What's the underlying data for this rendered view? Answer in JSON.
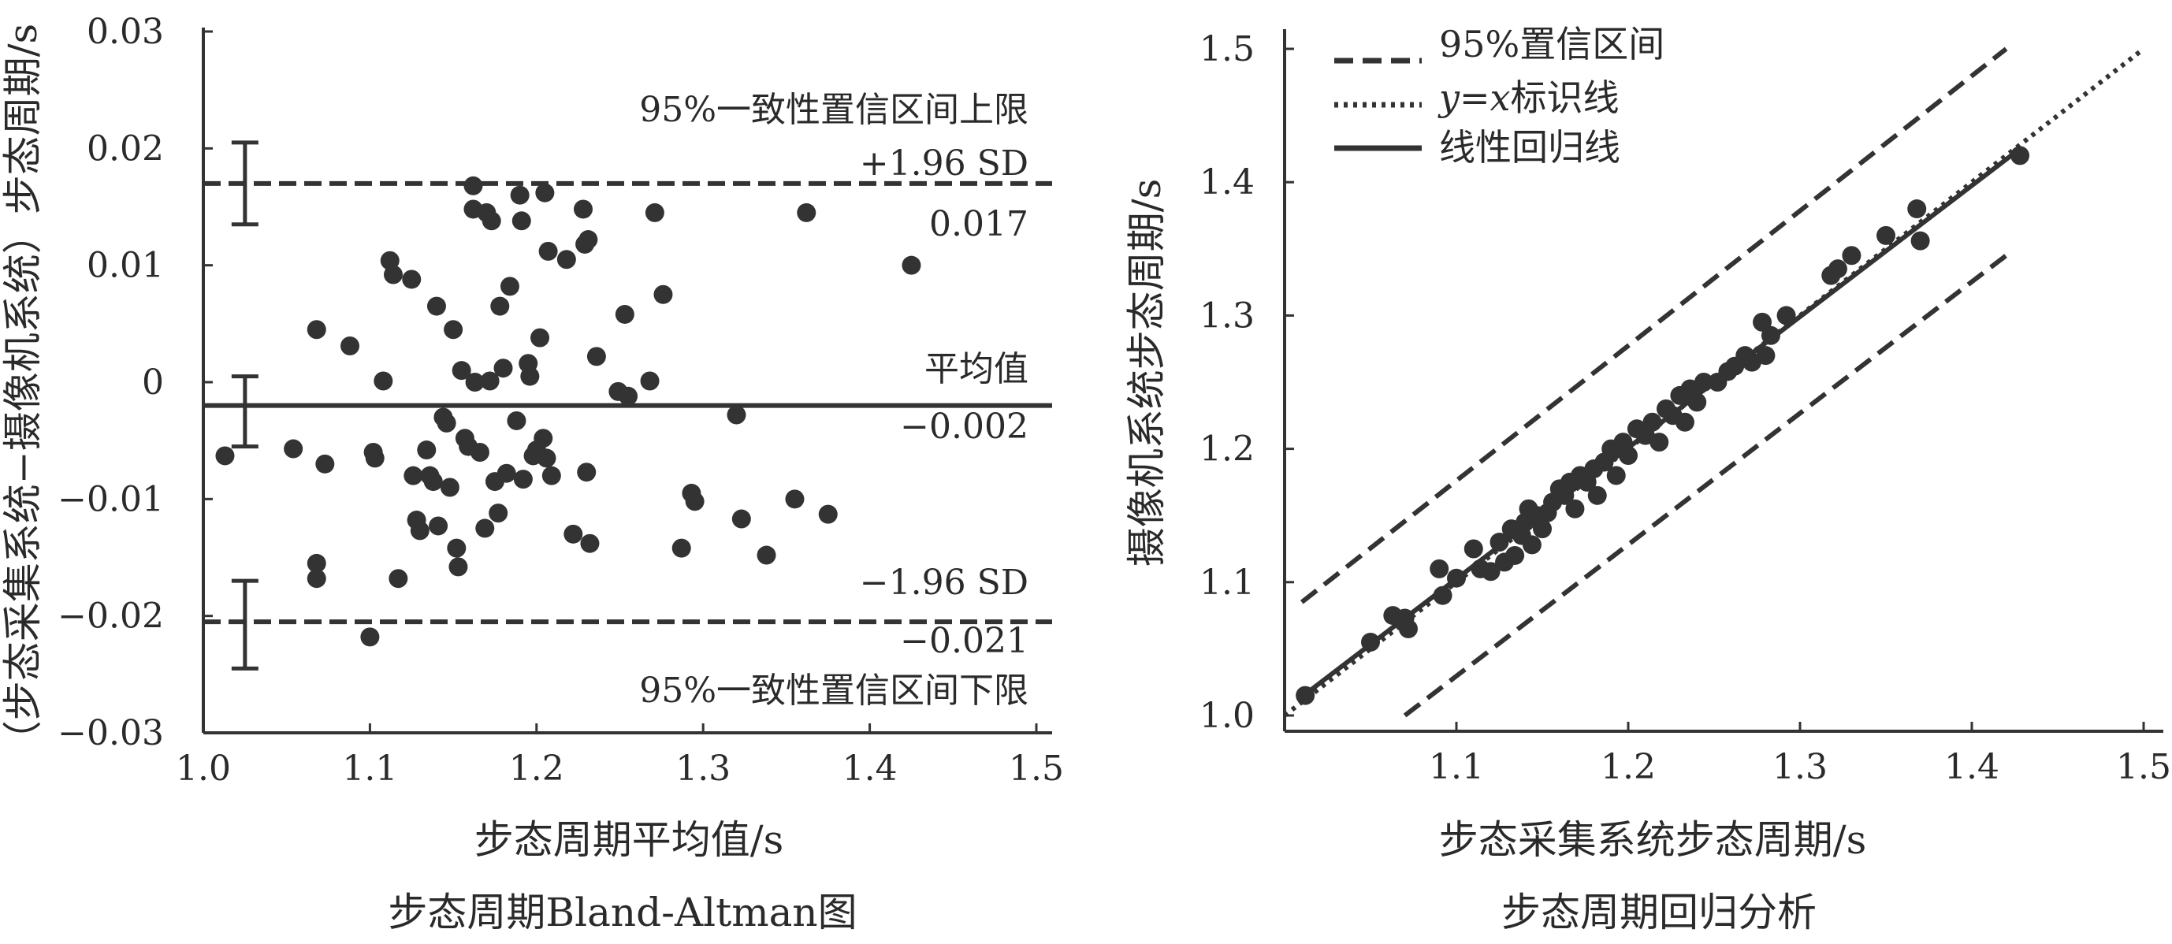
{
  "chart_data": [
    {
      "type": "scatter",
      "caption": "步态周期Bland-Altman图",
      "xlabel": "步态周期平均值/s",
      "ylabel": "（步态采集系统−摄像机系统）步态周期/s",
      "xlim": [
        1.0,
        1.5
      ],
      "ylim": [
        -0.03,
        0.03
      ],
      "x_ticks": [
        "1.0",
        "1.1",
        "1.2",
        "1.3",
        "1.4",
        "1.5"
      ],
      "y_ticks": [
        "0.03",
        "0.02",
        "0.01",
        "0",
        "−0.01",
        "−0.02",
        "−0.03"
      ],
      "lines": [
        {
          "label_top": "95%一致性置信区间上限",
          "label_mid": "+1.96 SD",
          "value_text": "0.017",
          "y": 0.017,
          "style": "dashed"
        },
        {
          "label_top": "平均值",
          "value_text": "−0.002",
          "y": -0.002,
          "style": "solid"
        },
        {
          "label_mid": "−1.96 SD",
          "value_text": "−0.021",
          "label_bottom": "95%一致性置信区间下限",
          "y": -0.0205,
          "style": "dashed"
        }
      ],
      "error_bars": [
        {
          "x": 1.025,
          "y_low": 0.0135,
          "y_high": 0.0205
        },
        {
          "x": 1.025,
          "y_low": -0.0055,
          "y_high": 0.0005
        },
        {
          "x": 1.025,
          "y_low": -0.0245,
          "y_high": -0.017
        }
      ],
      "points": [
        [
          1.013,
          -0.0063
        ],
        [
          1.054,
          -0.0057
        ],
        [
          1.068,
          0.0045
        ],
        [
          1.068,
          -0.0155
        ],
        [
          1.068,
          -0.0168
        ],
        [
          1.073,
          -0.007
        ],
        [
          1.088,
          0.0031
        ],
        [
          1.1,
          -0.0218
        ],
        [
          1.102,
          -0.006
        ],
        [
          1.103,
          -0.0065
        ],
        [
          1.108,
          0.0001
        ],
        [
          1.112,
          0.0104
        ],
        [
          1.114,
          0.0092
        ],
        [
          1.117,
          -0.0168
        ],
        [
          1.125,
          0.0088
        ],
        [
          1.126,
          -0.008
        ],
        [
          1.128,
          -0.0118
        ],
        [
          1.13,
          -0.0127
        ],
        [
          1.134,
          -0.0058
        ],
        [
          1.136,
          -0.008
        ],
        [
          1.138,
          -0.0085
        ],
        [
          1.14,
          0.0065
        ],
        [
          1.141,
          -0.0123
        ],
        [
          1.144,
          -0.003
        ],
        [
          1.146,
          -0.0035
        ],
        [
          1.148,
          -0.009
        ],
        [
          1.15,
          0.0045
        ],
        [
          1.152,
          -0.0142
        ],
        [
          1.153,
          -0.0158
        ],
        [
          1.155,
          0.001
        ],
        [
          1.157,
          -0.0048
        ],
        [
          1.159,
          -0.0055
        ],
        [
          1.162,
          0.0168
        ],
        [
          1.162,
          0.0148
        ],
        [
          1.163,
          0.0
        ],
        [
          1.166,
          -0.006
        ],
        [
          1.169,
          -0.0125
        ],
        [
          1.17,
          0.0145
        ],
        [
          1.172,
          0.0001
        ],
        [
          1.173,
          0.0138
        ],
        [
          1.175,
          -0.0085
        ],
        [
          1.177,
          -0.0112
        ],
        [
          1.178,
          0.0065
        ],
        [
          1.18,
          0.0012
        ],
        [
          1.182,
          -0.0078
        ],
        [
          1.184,
          0.0082
        ],
        [
          1.188,
          -0.0033
        ],
        [
          1.19,
          0.016
        ],
        [
          1.191,
          0.0138
        ],
        [
          1.192,
          -0.0083
        ],
        [
          1.195,
          0.0016
        ],
        [
          1.196,
          0.0005
        ],
        [
          1.198,
          -0.0063
        ],
        [
          1.2,
          -0.0058
        ],
        [
          1.202,
          0.0038
        ],
        [
          1.204,
          -0.0048
        ],
        [
          1.205,
          0.0162
        ],
        [
          1.206,
          -0.0065
        ],
        [
          1.207,
          0.0112
        ],
        [
          1.209,
          -0.008
        ],
        [
          1.218,
          0.0105
        ],
        [
          1.222,
          -0.013
        ],
        [
          1.228,
          0.0148
        ],
        [
          1.229,
          0.0118
        ],
        [
          1.23,
          -0.0077
        ],
        [
          1.231,
          0.0122
        ],
        [
          1.232,
          -0.0138
        ],
        [
          1.236,
          0.0022
        ],
        [
          1.249,
          -0.0008
        ],
        [
          1.253,
          0.0058
        ],
        [
          1.255,
          -0.0012
        ],
        [
          1.268,
          0.0001
        ],
        [
          1.271,
          0.0145
        ],
        [
          1.276,
          0.0075
        ],
        [
          1.287,
          -0.0142
        ],
        [
          1.293,
          -0.0095
        ],
        [
          1.295,
          -0.0102
        ],
        [
          1.32,
          -0.0028
        ],
        [
          1.323,
          -0.0117
        ],
        [
          1.338,
          -0.0148
        ],
        [
          1.355,
          -0.01
        ],
        [
          1.362,
          0.0145
        ],
        [
          1.375,
          -0.0113
        ],
        [
          1.425,
          0.01
        ]
      ]
    },
    {
      "type": "scatter",
      "caption": "步态周期回归分析",
      "xlabel": "步态采集系统步态周期/s",
      "ylabel": "摄像机系统步态周期/s",
      "xlim": [
        1.0,
        1.5
      ],
      "ylim": [
        1.0,
        1.5
      ],
      "x_ticks": [
        "1.1",
        "1.2",
        "1.3",
        "1.4",
        "1.5"
      ],
      "y_ticks": [
        "1.5",
        "1.4",
        "1.3",
        "1.2",
        "1.1",
        "1.0"
      ],
      "legend": [
        {
          "label": "95%置信区间",
          "style": "dashed"
        },
        {
          "label_italic": "y=x",
          "label": "标识线",
          "style": "dotted"
        },
        {
          "label": "线性回归线",
          "style": "solid"
        }
      ],
      "legend_position": "top-left",
      "lines": [
        {
          "name": "95%置信区间",
          "style": "dashed",
          "from": [
            1.01,
            1.085
          ],
          "to": [
            1.42,
            1.5
          ]
        },
        {
          "name": "95%置信区间",
          "style": "dashed",
          "from": [
            1.07,
            1.0
          ],
          "to": [
            1.42,
            1.345
          ]
        },
        {
          "name": "y=x标识线",
          "style": "dotted",
          "from": [
            1.0,
            1.0
          ],
          "to": [
            1.5,
            1.5
          ]
        },
        {
          "name": "线性回归线",
          "style": "solid",
          "from": [
            1.008,
            1.012
          ],
          "to": [
            1.428,
            1.425
          ]
        }
      ],
      "points": [
        [
          1.012,
          1.015
        ],
        [
          1.05,
          1.055
        ],
        [
          1.063,
          1.075
        ],
        [
          1.07,
          1.073
        ],
        [
          1.072,
          1.065
        ],
        [
          1.09,
          1.11
        ],
        [
          1.092,
          1.09
        ],
        [
          1.1,
          1.103
        ],
        [
          1.11,
          1.125
        ],
        [
          1.114,
          1.11
        ],
        [
          1.12,
          1.108
        ],
        [
          1.125,
          1.13
        ],
        [
          1.128,
          1.115
        ],
        [
          1.132,
          1.14
        ],
        [
          1.134,
          1.12
        ],
        [
          1.138,
          1.135
        ],
        [
          1.14,
          1.145
        ],
        [
          1.142,
          1.155
        ],
        [
          1.144,
          1.128
        ],
        [
          1.147,
          1.15
        ],
        [
          1.15,
          1.14
        ],
        [
          1.153,
          1.152
        ],
        [
          1.156,
          1.16
        ],
        [
          1.16,
          1.17
        ],
        [
          1.163,
          1.165
        ],
        [
          1.166,
          1.175
        ],
        [
          1.169,
          1.155
        ],
        [
          1.172,
          1.18
        ],
        [
          1.176,
          1.175
        ],
        [
          1.18,
          1.185
        ],
        [
          1.182,
          1.165
        ],
        [
          1.186,
          1.19
        ],
        [
          1.19,
          1.2
        ],
        [
          1.193,
          1.18
        ],
        [
          1.197,
          1.205
        ],
        [
          1.2,
          1.195
        ],
        [
          1.205,
          1.215
        ],
        [
          1.21,
          1.21
        ],
        [
          1.214,
          1.22
        ],
        [
          1.218,
          1.205
        ],
        [
          1.222,
          1.23
        ],
        [
          1.226,
          1.225
        ],
        [
          1.23,
          1.24
        ],
        [
          1.233,
          1.22
        ],
        [
          1.236,
          1.245
        ],
        [
          1.24,
          1.235
        ],
        [
          1.244,
          1.25
        ],
        [
          1.252,
          1.25
        ],
        [
          1.258,
          1.258
        ],
        [
          1.262,
          1.262
        ],
        [
          1.268,
          1.27
        ],
        [
          1.272,
          1.265
        ],
        [
          1.278,
          1.295
        ],
        [
          1.28,
          1.27
        ],
        [
          1.283,
          1.285
        ],
        [
          1.292,
          1.3
        ],
        [
          1.318,
          1.33
        ],
        [
          1.322,
          1.335
        ],
        [
          1.33,
          1.345
        ],
        [
          1.35,
          1.36
        ],
        [
          1.368,
          1.38
        ],
        [
          1.37,
          1.356
        ],
        [
          1.428,
          1.42
        ]
      ]
    }
  ]
}
